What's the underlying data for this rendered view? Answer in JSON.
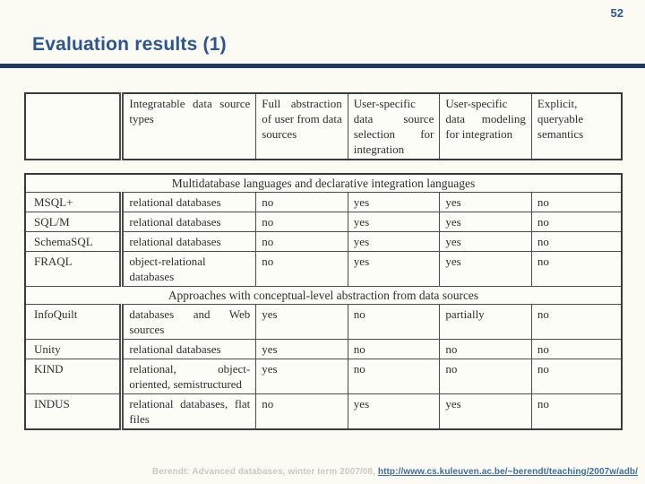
{
  "slide": {
    "page_number": "52",
    "title": "Evaluation results (1)"
  },
  "table": {
    "columns": [
      "",
      "Integratable data source types",
      "Full abstraction of user from data sources",
      "User-specific data source selection for integration",
      "User-specific data modeling for integration",
      "Explicit, queryable semantics"
    ],
    "sections": [
      {
        "header": "Multidatabase languages and declarative integration languages",
        "rows": [
          {
            "name": "MSQL+",
            "cells": [
              "relational databases",
              "no",
              "yes",
              "yes",
              "no"
            ]
          },
          {
            "name": "SQL/M",
            "cells": [
              "relational databases",
              "no",
              "yes",
              "yes",
              "no"
            ]
          },
          {
            "name": "SchemaSQL",
            "cells": [
              "relational databases",
              "no",
              "yes",
              "yes",
              "no"
            ]
          },
          {
            "name": "FRAQL",
            "cells": [
              "object-relational databases",
              "no",
              "yes",
              "yes",
              "no"
            ]
          }
        ]
      },
      {
        "header": "Approaches with conceptual-level abstraction from data sources",
        "rows": [
          {
            "name": "InfoQuilt",
            "cells": [
              "databases and Web sources",
              "yes",
              "no",
              "partially",
              "no"
            ]
          },
          {
            "name": "Unity",
            "cells": [
              "relational databases",
              "yes",
              "no",
              "no",
              "no"
            ]
          },
          {
            "name": "KIND",
            "cells": [
              "relational, object-oriented, semistructured",
              "yes",
              "no",
              "no",
              "no"
            ]
          },
          {
            "name": "INDUS",
            "cells": [
              "relational databases, flat files",
              "no",
              "yes",
              "yes",
              "no"
            ]
          }
        ]
      }
    ]
  },
  "footer": {
    "credit": "Berendt: Advanced databases, winter term 2007/08, ",
    "link": "http://www.cs.kuleuven.ac.be/~berendt/teaching/2007w/adb/"
  },
  "colors": {
    "accent_blue": "#2b5691",
    "rule_navy": "#1f3864",
    "link_blue": "#3b6ea5",
    "footer_gray": "#c9c9c9",
    "background": "#fbfbf3"
  }
}
